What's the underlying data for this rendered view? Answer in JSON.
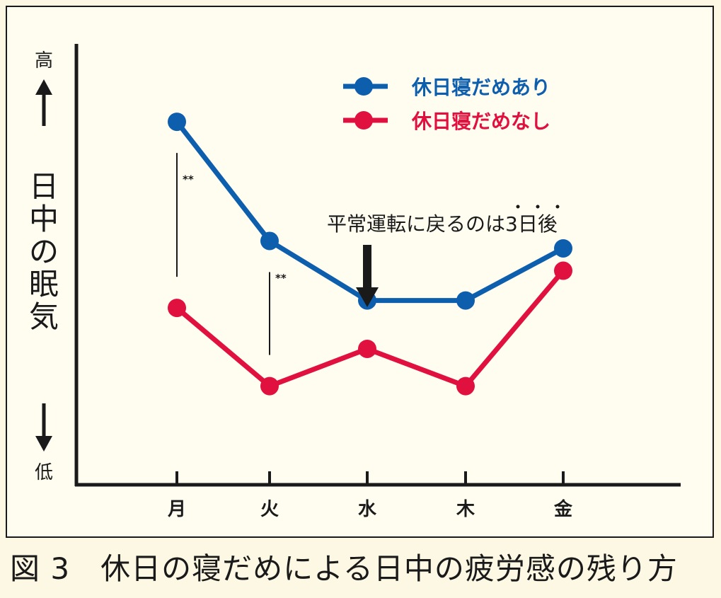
{
  "caption": "図 3　休日の寝だめによる日中の疲労感の残り方",
  "chart_data": {
    "type": "line",
    "categories": [
      "月",
      "火",
      "水",
      "木",
      "金"
    ],
    "ylabel": "日中の眠気",
    "y_high_label": "高",
    "y_low_label": "低",
    "ylim": [
      0,
      100
    ],
    "series": [
      {
        "name": "休日寝だめあり",
        "color": "#0d5fae",
        "values": [
          88,
          56,
          40,
          40,
          54
        ]
      },
      {
        "name": "休日寝だめなし",
        "color": "#e0103f",
        "values": [
          38,
          17,
          27,
          17,
          48
        ]
      }
    ],
    "legend_position": "top-right",
    "significance": [
      {
        "category": "月",
        "label": "**"
      },
      {
        "category": "火",
        "label": "**"
      }
    ],
    "annotation": {
      "text": "平常運転に戻るのは3日後",
      "emphasis_marks": "3日後",
      "category": "水"
    },
    "grid": false
  }
}
